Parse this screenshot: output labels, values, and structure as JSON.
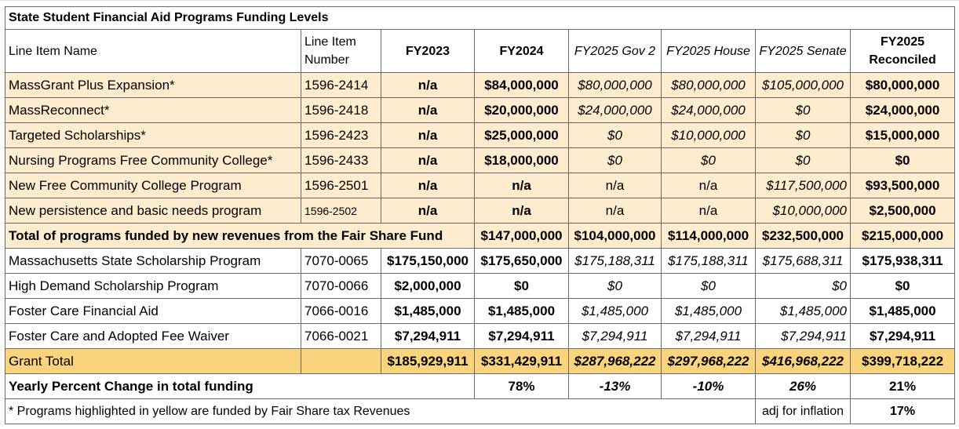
{
  "title": "State Student Financial Aid Programs Funding Levels",
  "headers": {
    "name": "Line Item Name",
    "number": "Line Item Number",
    "fy2023": "FY2023",
    "fy2024": "FY2024",
    "gov": "FY2025 Gov 2",
    "house": "FY2025 House",
    "senate": "FY2025 Senate",
    "reconciled": "FY2025 Reconciled"
  },
  "fair_share_rows": [
    {
      "name": "MassGrant Plus Expansion*",
      "number": "1596-2414",
      "fy2023": "n/a",
      "fy2024": "$84,000,000",
      "gov": "$80,000,000",
      "house": "$80,000,000",
      "senate": "$105,000,000",
      "reconciled": "$80,000,000"
    },
    {
      "name": "MassReconnect*",
      "number": "1596-2418",
      "fy2023": "n/a",
      "fy2024": "$20,000,000",
      "gov": "$24,000,000",
      "house": "$24,000,000",
      "senate": "$0",
      "reconciled": "$24,000,000"
    },
    {
      "name": "Targeted Scholarships*",
      "number": "1596-2423",
      "fy2023": "n/a",
      "fy2024": "$25,000,000",
      "gov": "$0",
      "house": "$10,000,000",
      "senate": "$0",
      "reconciled": "$15,000,000"
    },
    {
      "name": "Nursing Programs Free Community College*",
      "number": "1596-2433",
      "fy2023": "n/a",
      "fy2024": "$18,000,000",
      "gov": "$0",
      "house": "$0",
      "senate": "$0",
      "reconciled": "$0"
    },
    {
      "name": "New Free Community College Program",
      "number": "1596-2501",
      "fy2023": "n/a",
      "fy2024": "n/a",
      "gov": "n/a",
      "house": "n/a",
      "senate": "$117,500,000",
      "reconciled": "$93,500,000"
    },
    {
      "name": "New persistence and basic needs program",
      "number": "1596-2502",
      "fy2023": "n/a",
      "fy2024": "n/a",
      "gov": "n/a",
      "house": "n/a",
      "senate": "$10,000,000",
      "reconciled": "$2,500,000"
    }
  ],
  "fair_share_total": {
    "label": "Total of programs funded by new revenues from the Fair Share Fund",
    "fy2024": "$147,000,000",
    "gov": "$104,000,000",
    "house": "$114,000,000",
    "senate": "$232,500,000",
    "reconciled": "$215,000,000"
  },
  "other_rows": [
    {
      "name": "Massachusetts State Scholarship Program",
      "number": "7070-0065",
      "fy2023": "$175,150,000",
      "fy2024": "$175,650,000",
      "gov": "$175,188,311",
      "house": "$175,188,311",
      "senate": "$175,688,311",
      "reconciled": "$175,938,311"
    },
    {
      "name": "High Demand Scholarship Program",
      "number": "7070-0066",
      "fy2023": "$2,000,000",
      "fy2024": "$0",
      "gov": "$0",
      "house": "$0",
      "senate": "$0",
      "reconciled": "$0"
    },
    {
      "name": "Foster Care Financial Aid",
      "number": "7066-0016",
      "fy2023": "$1,485,000",
      "fy2024": "$1,485,000",
      "gov": "$1,485,000",
      "house": "$1,485,000",
      "senate": "$1,485,000",
      "reconciled": "$1,485,000"
    },
    {
      "name": "Foster Care and Adopted Fee Waiver",
      "number": "7066-0021",
      "fy2023": "$7,294,911",
      "fy2024": "$7,294,911",
      "gov": "$7,294,911",
      "house": "$7,294,911",
      "senate": "$7,294,911",
      "reconciled": "$7,294,911"
    }
  ],
  "grand_total": {
    "label": "Grant Total",
    "fy2023": "$185,929,911",
    "fy2024": "$331,429,911",
    "gov": "$287,968,222",
    "house": "$297,968,222",
    "senate": "$416,968,222",
    "reconciled": "$399,718,222"
  },
  "yearly_change": {
    "label": "Yearly Percent Change in total funding",
    "fy2024": "78%",
    "gov": "-13%",
    "house": "-10%",
    "senate": "26%",
    "reconciled": "21%"
  },
  "footer": {
    "note": "* Programs highlighted in yellow are funded by Fair Share tax Revenues",
    "adj_label": "adj for inflation",
    "adj_value": "17%"
  },
  "colors": {
    "light_yellow": "#fdeccd",
    "gold": "#fad47c",
    "border": "#6b6b6b"
  }
}
